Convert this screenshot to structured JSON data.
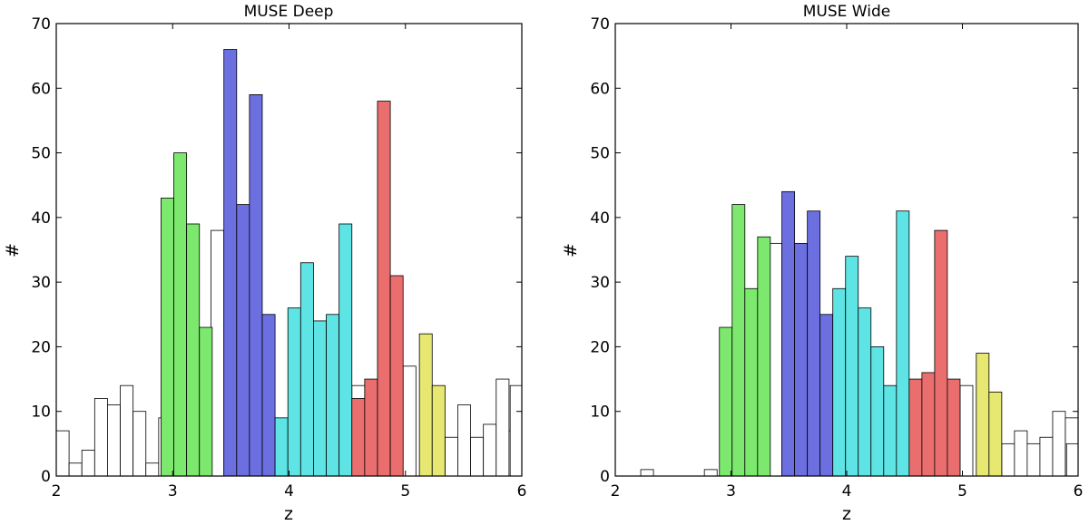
{
  "chart_data": [
    {
      "type": "bar",
      "title": "MUSE Deep",
      "xlabel": "z",
      "ylabel": "#",
      "xlim": [
        2,
        6
      ],
      "ylim": [
        0,
        70
      ],
      "xticks": [
        "2",
        "3",
        "4",
        "5",
        "6"
      ],
      "yticks": [
        "0",
        "10",
        "20",
        "30",
        "40",
        "50",
        "60",
        "70"
      ],
      "bin_width": 0.11,
      "colors": {
        "none": "#ffffff",
        "green": "#7de86e",
        "blue": "#6b6fe0",
        "cyan": "#5ee4e4",
        "red": "#ea6e6e",
        "yellow": "#e6e872"
      },
      "bars": [
        {
          "x": 2.0,
          "value": 7,
          "group": "none"
        },
        {
          "x": 2.11,
          "value": 2,
          "group": "none"
        },
        {
          "x": 2.22,
          "value": 4,
          "group": "none"
        },
        {
          "x": 2.33,
          "value": 12,
          "group": "none"
        },
        {
          "x": 2.44,
          "value": 11,
          "group": "none"
        },
        {
          "x": 2.55,
          "value": 14,
          "group": "none"
        },
        {
          "x": 2.66,
          "value": 10,
          "group": "none"
        },
        {
          "x": 2.77,
          "value": 2,
          "group": "none"
        },
        {
          "x": 2.88,
          "value": 9,
          "group": "none"
        },
        {
          "x": 2.9,
          "value": 43,
          "group": "green"
        },
        {
          "x": 3.01,
          "value": 50,
          "group": "green"
        },
        {
          "x": 3.12,
          "value": 39,
          "group": "green"
        },
        {
          "x": 3.23,
          "value": 23,
          "group": "green"
        },
        {
          "x": 3.33,
          "value": 38,
          "group": "none"
        },
        {
          "x": 3.44,
          "value": 66,
          "group": "blue"
        },
        {
          "x": 3.55,
          "value": 42,
          "group": "blue"
        },
        {
          "x": 3.66,
          "value": 59,
          "group": "blue"
        },
        {
          "x": 3.77,
          "value": 25,
          "group": "blue"
        },
        {
          "x": 3.88,
          "value": 2,
          "group": "none"
        },
        {
          "x": 3.88,
          "value": 9,
          "group": "cyan"
        },
        {
          "x": 3.99,
          "value": 26,
          "group": "cyan"
        },
        {
          "x": 4.1,
          "value": 33,
          "group": "cyan"
        },
        {
          "x": 4.21,
          "value": 24,
          "group": "cyan"
        },
        {
          "x": 4.32,
          "value": 25,
          "group": "cyan"
        },
        {
          "x": 4.43,
          "value": 39,
          "group": "cyan"
        },
        {
          "x": 4.54,
          "value": 14,
          "group": "none"
        },
        {
          "x": 4.54,
          "value": 12,
          "group": "red"
        },
        {
          "x": 4.65,
          "value": 15,
          "group": "red"
        },
        {
          "x": 4.76,
          "value": 58,
          "group": "red"
        },
        {
          "x": 4.87,
          "value": 31,
          "group": "red"
        },
        {
          "x": 4.98,
          "value": 17,
          "group": "none"
        },
        {
          "x": 5.12,
          "value": 22,
          "group": "yellow"
        },
        {
          "x": 5.23,
          "value": 14,
          "group": "yellow"
        },
        {
          "x": 5.34,
          "value": 6,
          "group": "none"
        },
        {
          "x": 5.45,
          "value": 11,
          "group": "none"
        },
        {
          "x": 5.56,
          "value": 6,
          "group": "none"
        },
        {
          "x": 5.67,
          "value": 8,
          "group": "none"
        },
        {
          "x": 5.78,
          "value": 15,
          "group": "none"
        },
        {
          "x": 5.89,
          "value": 7,
          "group": "none"
        },
        {
          "x": 5.9,
          "value": 14,
          "group": "none"
        }
      ]
    },
    {
      "type": "bar",
      "title": "MUSE Wide",
      "xlabel": "z",
      "ylabel": "#",
      "xlim": [
        2,
        6
      ],
      "ylim": [
        0,
        70
      ],
      "xticks": [
        "2",
        "3",
        "4",
        "5",
        "6"
      ],
      "yticks": [
        "0",
        "10",
        "20",
        "30",
        "40",
        "50",
        "60",
        "70"
      ],
      "bin_width": 0.11,
      "colors": {
        "none": "#ffffff",
        "green": "#7de86e",
        "blue": "#6b6fe0",
        "cyan": "#5ee4e4",
        "red": "#ea6e6e",
        "yellow": "#e6e872"
      },
      "bars": [
        {
          "x": 2.0,
          "value": 0,
          "group": "none"
        },
        {
          "x": 2.22,
          "value": 1,
          "group": "none"
        },
        {
          "x": 2.33,
          "value": 0,
          "group": "none"
        },
        {
          "x": 2.44,
          "value": 0,
          "group": "none"
        },
        {
          "x": 2.55,
          "value": 0,
          "group": "none"
        },
        {
          "x": 2.77,
          "value": 1,
          "group": "none"
        },
        {
          "x": 2.9,
          "value": 23,
          "group": "green"
        },
        {
          "x": 3.01,
          "value": 42,
          "group": "green"
        },
        {
          "x": 3.12,
          "value": 29,
          "group": "green"
        },
        {
          "x": 3.23,
          "value": 37,
          "group": "green"
        },
        {
          "x": 3.33,
          "value": 36,
          "group": "none"
        },
        {
          "x": 3.44,
          "value": 44,
          "group": "blue"
        },
        {
          "x": 3.55,
          "value": 36,
          "group": "blue"
        },
        {
          "x": 3.66,
          "value": 41,
          "group": "blue"
        },
        {
          "x": 3.77,
          "value": 25,
          "group": "blue"
        },
        {
          "x": 3.88,
          "value": 5,
          "group": "none"
        },
        {
          "x": 3.88,
          "value": 29,
          "group": "cyan"
        },
        {
          "x": 3.99,
          "value": 34,
          "group": "cyan"
        },
        {
          "x": 4.1,
          "value": 26,
          "group": "cyan"
        },
        {
          "x": 4.21,
          "value": 20,
          "group": "cyan"
        },
        {
          "x": 4.32,
          "value": 14,
          "group": "cyan"
        },
        {
          "x": 4.43,
          "value": 41,
          "group": "cyan"
        },
        {
          "x": 4.54,
          "value": 5,
          "group": "none"
        },
        {
          "x": 4.54,
          "value": 15,
          "group": "red"
        },
        {
          "x": 4.65,
          "value": 16,
          "group": "red"
        },
        {
          "x": 4.76,
          "value": 38,
          "group": "red"
        },
        {
          "x": 4.87,
          "value": 15,
          "group": "red"
        },
        {
          "x": 4.98,
          "value": 14,
          "group": "none"
        },
        {
          "x": 5.12,
          "value": 19,
          "group": "yellow"
        },
        {
          "x": 5.23,
          "value": 13,
          "group": "yellow"
        },
        {
          "x": 5.34,
          "value": 5,
          "group": "none"
        },
        {
          "x": 5.45,
          "value": 7,
          "group": "none"
        },
        {
          "x": 5.56,
          "value": 5,
          "group": "none"
        },
        {
          "x": 5.67,
          "value": 6,
          "group": "none"
        },
        {
          "x": 5.78,
          "value": 10,
          "group": "none"
        },
        {
          "x": 5.89,
          "value": 9,
          "group": "none"
        },
        {
          "x": 5.9,
          "value": 5,
          "group": "none"
        }
      ]
    }
  ]
}
